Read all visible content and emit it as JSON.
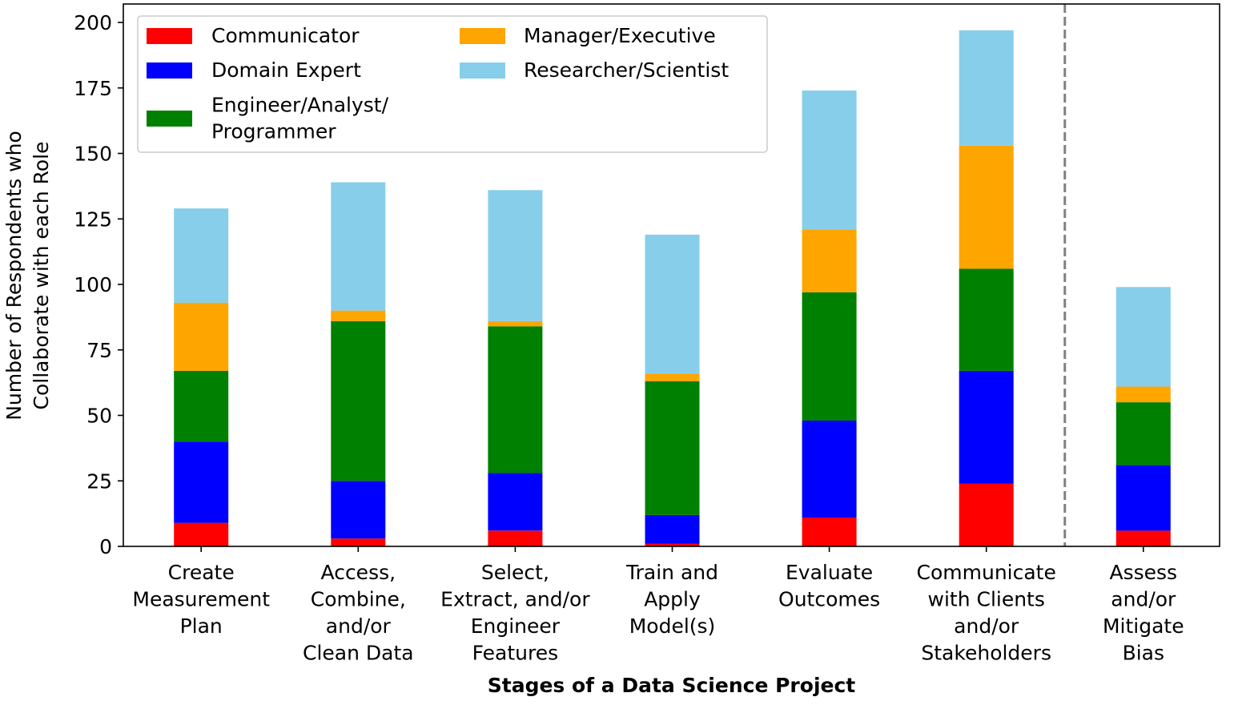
{
  "chart_data": {
    "type": "bar",
    "stacked": true,
    "categories": [
      [
        "Create",
        "Measurement",
        "Plan"
      ],
      [
        "Access,",
        "Combine,",
        "and/or",
        "Clean Data"
      ],
      [
        "Select,",
        "Extract, and/or",
        "Engineer",
        "Features"
      ],
      [
        "Train and",
        "Apply",
        "Model(s)"
      ],
      [
        "Evaluate",
        "Outcomes"
      ],
      [
        "Communicate",
        "with Clients",
        "and/or",
        "Stakeholders"
      ],
      [
        "Assess",
        "and/or",
        "Mitigate",
        "Bias"
      ]
    ],
    "series": [
      {
        "name": "Communicator",
        "color": "#ff0000",
        "values": [
          9,
          3,
          6,
          1,
          11,
          24,
          6
        ]
      },
      {
        "name": "Domain Expert",
        "color": "#0000ff",
        "values": [
          31,
          22,
          22,
          11,
          37,
          43,
          25
        ]
      },
      {
        "name": "Engineer/Analyst/\nProgrammer",
        "color": "#008000",
        "values": [
          27,
          61,
          56,
          51,
          49,
          39,
          24
        ]
      },
      {
        "name": "Manager/Executive",
        "color": "#ffa500",
        "values": [
          26,
          4,
          2,
          3,
          24,
          47,
          6
        ]
      },
      {
        "name": "Researcher/Scientist",
        "color": "#87ceeb",
        "values": [
          36,
          49,
          50,
          53,
          53,
          44,
          38
        ]
      }
    ],
    "xlabel": "Stages of a Data Science Project",
    "ylabel": [
      "Number of Respondents who",
      "Collaborate with each Role"
    ],
    "ylim": [
      0,
      200
    ],
    "yticks": [
      "0",
      "25",
      "50",
      "75",
      "100",
      "125",
      "150",
      "175",
      "200"
    ],
    "legend": {
      "position": "top-left",
      "columns": [
        [
          "Communicator",
          "Domain Expert",
          "Engineer/Analyst/\nProgrammer"
        ],
        [
          "Manager/Executive",
          "Researcher/Scientist"
        ]
      ]
    },
    "separator": {
      "style": "dashed",
      "color": "#808080",
      "between": [
        "Communicate with Clients and/or Stakeholders",
        "Assess and/or Mitigate Bias"
      ]
    },
    "grid": false
  }
}
